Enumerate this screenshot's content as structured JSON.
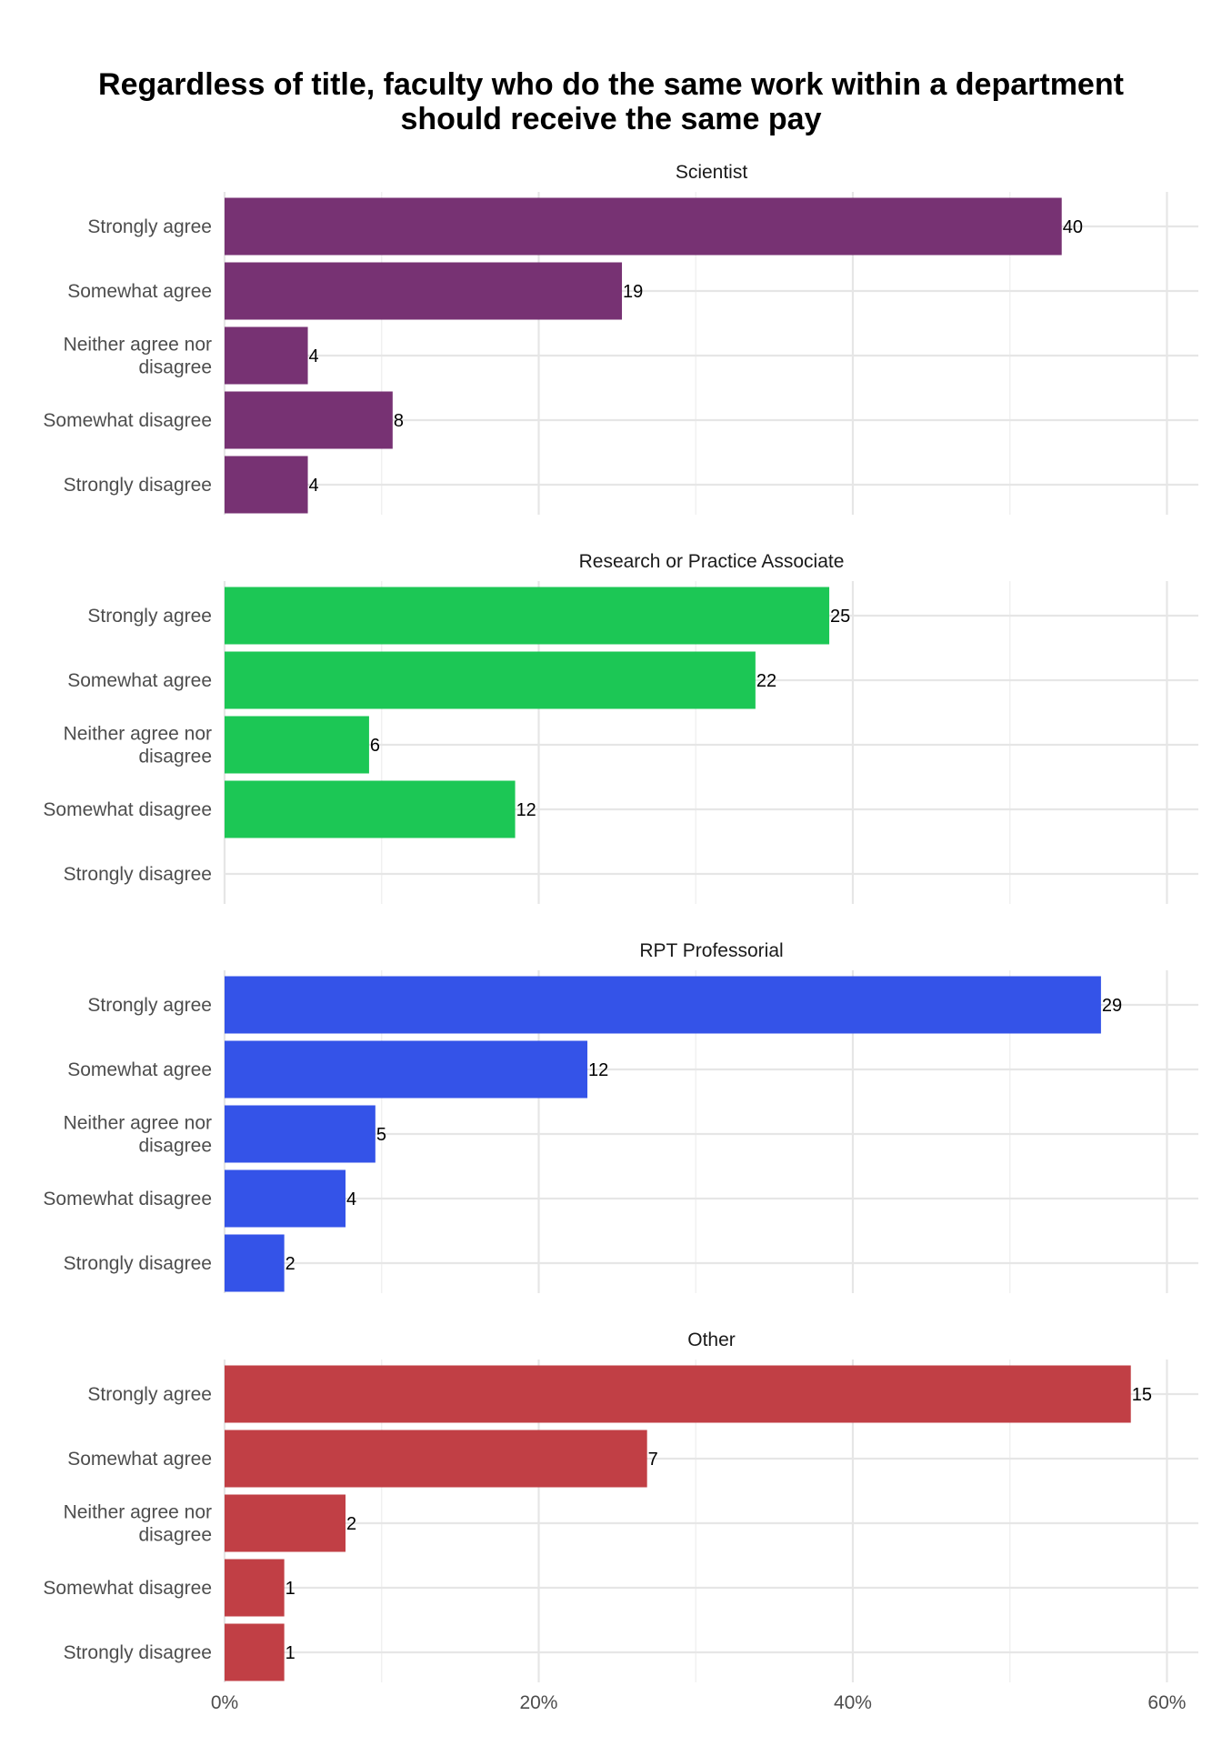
{
  "chart_data": {
    "type": "bar",
    "orientation": "horizontal",
    "title": "Regardless of title, faculty who do the same work within a department should receive the same pay",
    "title_lines": [
      "Regardless of title, faculty who do the same work within a department",
      "should receive the same pay"
    ],
    "categories": [
      "Strongly agree",
      "Somewhat agree",
      "Neither agree nor disagree",
      "Somewhat disagree",
      "Strongly disagree"
    ],
    "category_lines": [
      [
        "Strongly agree"
      ],
      [
        "Somewhat agree"
      ],
      [
        "Neither agree nor",
        "disagree"
      ],
      [
        "Somewhat disagree"
      ],
      [
        "Strongly disagree"
      ]
    ],
    "x_axis": {
      "unit": "percent",
      "xlim": [
        0,
        62
      ],
      "ticks": [
        0,
        20,
        40,
        60
      ],
      "tick_labels": [
        "0%",
        "20%",
        "40%",
        "60%"
      ]
    },
    "grid": true,
    "legend": "none",
    "facets": [
      {
        "name": "Scientist",
        "color": "#773273",
        "counts": [
          40,
          19,
          4,
          8,
          4
        ],
        "percents": [
          53.3,
          25.3,
          5.3,
          10.7,
          5.3
        ]
      },
      {
        "name": "Research or Practice Associate",
        "color": "#1CC755",
        "counts": [
          25,
          22,
          6,
          12,
          null
        ],
        "percents": [
          38.5,
          33.8,
          9.2,
          18.5,
          0
        ]
      },
      {
        "name": "RPT Professorial",
        "color": "#3453E8",
        "counts": [
          29,
          12,
          5,
          4,
          2
        ],
        "percents": [
          55.8,
          23.1,
          9.6,
          7.7,
          3.8
        ]
      },
      {
        "name": "Other",
        "color": "#C13F45",
        "counts": [
          15,
          7,
          2,
          1,
          1
        ],
        "percents": [
          57.7,
          26.9,
          7.7,
          3.8,
          3.8
        ]
      }
    ]
  }
}
